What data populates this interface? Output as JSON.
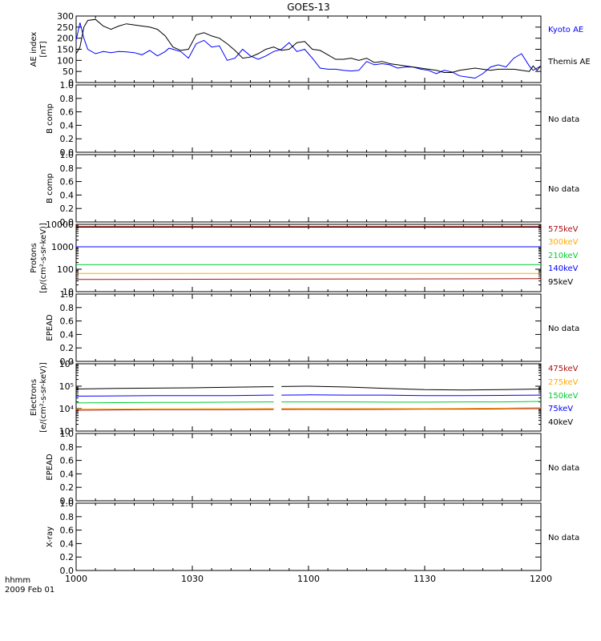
{
  "title": "GOES-13",
  "time_axis": {
    "tick_labels": [
      "1000",
      "1030",
      "1100",
      "1130",
      "1200"
    ],
    "corner_label": "hhmm",
    "date_label": "2009 Feb 01",
    "range_minutes": [
      0,
      120
    ]
  },
  "colors": {
    "black": "#000000",
    "blue": "#0000ff",
    "green": "#00cc33",
    "orange": "#ffaa00",
    "darkred": "#aa1111"
  },
  "chart_data": [
    {
      "type": "line",
      "id": "ae",
      "ylabel": "AE index\n[nT]",
      "ylim": [
        0,
        300
      ],
      "yticks": [
        0,
        50,
        100,
        150,
        200,
        250,
        300
      ],
      "series": [
        {
          "name": "Kyoto AE",
          "color": "#0000ff",
          "x": [
            0,
            1,
            2,
            3,
            5,
            7,
            9,
            11,
            13,
            15,
            17,
            19,
            21,
            23,
            24,
            25,
            27,
            29,
            31,
            33,
            35,
            37,
            39,
            41,
            43,
            45,
            47,
            49,
            51,
            53,
            55,
            57,
            59,
            61,
            63,
            65,
            67,
            69,
            71,
            73,
            75,
            77,
            79,
            81,
            83,
            85,
            87,
            89,
            91,
            93,
            95,
            97,
            99,
            101,
            103,
            105,
            107,
            109,
            111,
            113,
            115,
            117,
            118,
            119,
            120
          ],
          "values": [
            190,
            270,
            200,
            150,
            130,
            140,
            135,
            140,
            138,
            135,
            125,
            145,
            120,
            140,
            155,
            150,
            140,
            110,
            175,
            190,
            160,
            165,
            100,
            110,
            150,
            120,
            105,
            120,
            140,
            150,
            180,
            140,
            150,
            110,
            65,
            60,
            60,
            55,
            52,
            55,
            95,
            80,
            85,
            80,
            65,
            70,
            70,
            60,
            55,
            40,
            55,
            48,
            30,
            25,
            20,
            40,
            70,
            80,
            70,
            110,
            130,
            75,
            55,
            65,
            75
          ]
        },
        {
          "name": "Themis AE",
          "color": "#000000",
          "x": [
            0,
            1,
            2,
            3,
            5,
            7,
            9,
            11,
            13,
            15,
            17,
            19,
            21,
            23,
            25,
            27,
            29,
            31,
            33,
            35,
            37,
            39,
            41,
            43,
            45,
            47,
            49,
            51,
            53,
            55,
            57,
            59,
            61,
            63,
            65,
            67,
            69,
            71,
            73,
            75,
            77,
            79,
            81,
            83,
            85,
            87,
            89,
            91,
            93,
            95,
            97,
            99,
            101,
            103,
            105,
            107,
            109,
            111,
            113,
            115,
            117,
            118,
            119,
            120
          ],
          "values": [
            130,
            160,
            250,
            280,
            285,
            255,
            240,
            255,
            265,
            260,
            255,
            250,
            240,
            210,
            160,
            145,
            150,
            215,
            225,
            210,
            200,
            175,
            145,
            110,
            115,
            130,
            150,
            160,
            145,
            150,
            180,
            185,
            150,
            145,
            125,
            105,
            105,
            110,
            100,
            110,
            90,
            95,
            85,
            80,
            75,
            70,
            65,
            60,
            55,
            45,
            45,
            55,
            60,
            65,
            60,
            55,
            60,
            60,
            60,
            55,
            50,
            75,
            55,
            75
          ]
        }
      ]
    },
    {
      "type": "line",
      "id": "bcomp1",
      "ylabel": "B comp",
      "ylim": [
        0,
        1
      ],
      "yticks": [
        0,
        0.2,
        0.4,
        0.6,
        0.8,
        1.0
      ],
      "yticklabels": [
        "0.0",
        "0.2",
        "0.4",
        "0.6",
        "0.8",
        "1.0"
      ],
      "note": "No data"
    },
    {
      "type": "line",
      "id": "bcomp2",
      "ylabel": "B comp",
      "ylim": [
        0,
        1
      ],
      "yticks": [
        0,
        0.2,
        0.4,
        0.6,
        0.8,
        1.0
      ],
      "yticklabels": [
        "0.0",
        "0.2",
        "0.4",
        "0.6",
        "0.8",
        "1.0"
      ],
      "note": "No data"
    },
    {
      "type": "line",
      "id": "protons",
      "ylabel": "Protons\n[p/(cm²-s-sr-keV)]",
      "scale": "log",
      "ylim": [
        10,
        10000
      ],
      "yticks": [
        10,
        100,
        1000,
        10000
      ],
      "yticklabels": [
        "10",
        "100",
        "1000",
        "10000"
      ],
      "series": [
        {
          "name": "575keV",
          "color": "#aa1111",
          "x": [
            0,
            120
          ],
          "values": [
            8000,
            8000
          ]
        },
        {
          "name": "300keV",
          "color": "#ffaa00",
          "x": [
            0,
            120
          ],
          "values": [
            65,
            65
          ]
        },
        {
          "name": "210keV",
          "color": "#00cc33",
          "x": [
            0,
            120
          ],
          "values": [
            160,
            160
          ]
        },
        {
          "name": "140keV",
          "color": "#0000ff",
          "x": [
            0,
            120
          ],
          "values": [
            1000,
            1000
          ]
        },
        {
          "name": "95keV",
          "color": "#000000",
          "x": [
            0,
            120
          ],
          "values": [
            7500,
            7500
          ]
        }
      ],
      "series_extra": [
        {
          "color": "#aa1111",
          "x": [
            0,
            120
          ],
          "values": [
            35,
            38
          ]
        }
      ]
    },
    {
      "type": "line",
      "id": "epead1",
      "ylabel": "EPEAD",
      "ylim": [
        0,
        1
      ],
      "yticks": [
        0,
        0.2,
        0.4,
        0.6,
        0.8,
        1.0
      ],
      "yticklabels": [
        "0.0",
        "0.2",
        "0.4",
        "0.6",
        "0.8",
        "1.0"
      ],
      "note": "No data"
    },
    {
      "type": "line",
      "id": "electrons",
      "ylabel": "Electrons\n[e/(cm²-s-sr-keV)]",
      "scale": "log",
      "ylim": [
        1000,
        1000000
      ],
      "yticks": [
        1000,
        10000,
        100000,
        1000000
      ],
      "yticklabels": [
        "10³",
        "10⁴",
        "10⁵",
        "10⁶"
      ],
      "series": [
        {
          "name": "475keV",
          "color": "#aa1111",
          "x": [
            0,
            10,
            20,
            30,
            40,
            50,
            60,
            70,
            80,
            90,
            100,
            110,
            120
          ],
          "values": [
            8500,
            8800,
            9000,
            9000,
            9000,
            9200,
            9300,
            9200,
            9300,
            9500,
            9500,
            9800,
            10000
          ]
        },
        {
          "name": "275keV",
          "color": "#ffaa00",
          "x": [
            0,
            10,
            20,
            30,
            40,
            50,
            60,
            70,
            80,
            90,
            100,
            110,
            120
          ],
          "values": [
            9500,
            9600,
            9800,
            9800,
            9900,
            10000,
            10000,
            10000,
            10000,
            10000,
            10200,
            10500,
            11000
          ]
        },
        {
          "name": "150keV",
          "color": "#00cc33",
          "x": [
            0,
            10,
            20,
            30,
            40,
            50,
            60,
            70,
            80,
            90,
            100,
            110,
            120
          ],
          "values": [
            18000,
            18500,
            19000,
            19000,
            19500,
            20000,
            20000,
            20000,
            19500,
            19500,
            20000,
            20000,
            21000
          ]
        },
        {
          "name": "75keV",
          "color": "#0000ff",
          "x": [
            0,
            10,
            20,
            30,
            40,
            50,
            60,
            70,
            80,
            90,
            100,
            110,
            120
          ],
          "values": [
            36000,
            37000,
            38000,
            38000,
            38000,
            40000,
            41000,
            40000,
            40000,
            38000,
            38000,
            39000,
            40000
          ]
        },
        {
          "name": "40keV",
          "color": "#000000",
          "x": [
            0,
            10,
            20,
            30,
            40,
            50,
            60,
            70,
            80,
            90,
            100,
            110,
            120
          ],
          "values": [
            75000,
            80000,
            82000,
            85000,
            90000,
            95000,
            100000,
            92000,
            80000,
            70000,
            68000,
            70000,
            75000
          ]
        }
      ],
      "gap": [
        51,
        53
      ]
    },
    {
      "type": "line",
      "id": "epead2",
      "ylabel": "EPEAD",
      "ylim": [
        0,
        1
      ],
      "yticks": [
        0,
        0.2,
        0.4,
        0.6,
        0.8,
        1.0
      ],
      "yticklabels": [
        "0.0",
        "0.2",
        "0.4",
        "0.6",
        "0.8",
        "1.0"
      ],
      "note": "No data"
    },
    {
      "type": "line",
      "id": "xray",
      "ylabel": "X-ray",
      "ylim": [
        0,
        1
      ],
      "yticks": [
        0,
        0.2,
        0.4,
        0.6,
        0.8,
        1.0
      ],
      "yticklabels": [
        "0.0",
        "0.2",
        "0.4",
        "0.6",
        "0.8",
        "1.0"
      ],
      "note": "No data"
    }
  ]
}
